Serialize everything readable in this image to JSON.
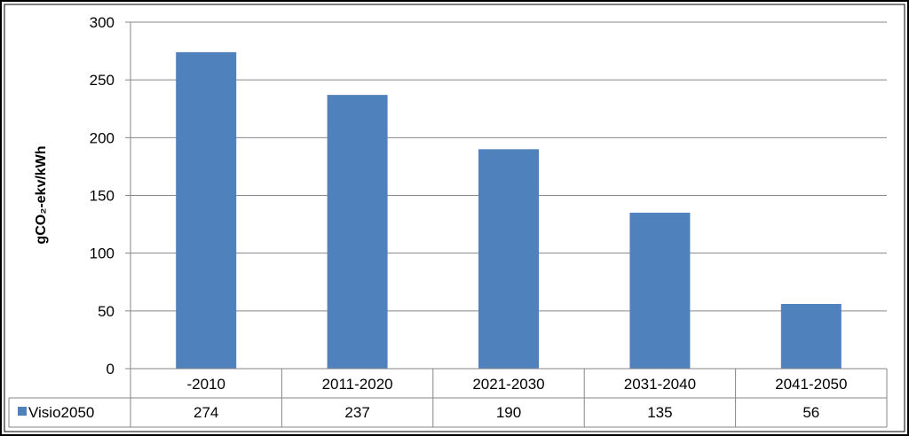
{
  "chart_data": {
    "type": "bar",
    "categories": [
      "-2010",
      "2011-2020",
      "2021-2030",
      "2031-2040",
      "2041-2050"
    ],
    "series": [
      {
        "name": "Visio2050",
        "values": [
          274,
          237,
          190,
          135,
          56
        ],
        "color": "#4f81bd"
      }
    ],
    "ylabel": "gCO₂-ekv/kWh",
    "ylim": [
      0,
      300
    ],
    "yticks": [
      0,
      50,
      100,
      150,
      200,
      250,
      300
    ],
    "grid": true,
    "data_table": true
  }
}
